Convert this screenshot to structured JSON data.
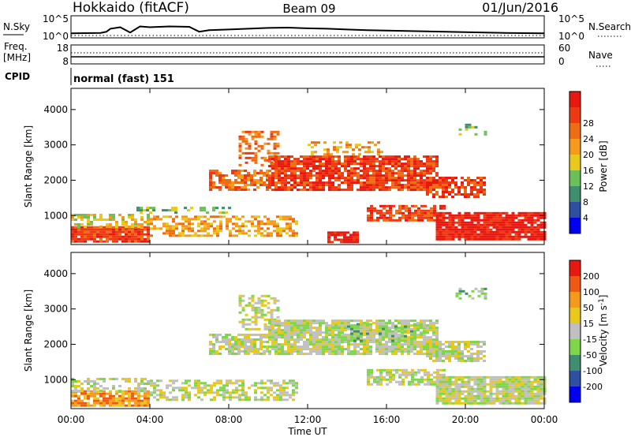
{
  "header": {
    "station": "Hokkaido (fitACF)",
    "beam": "Beam 09",
    "date": "01/Jun/2016"
  },
  "noise_panel": {
    "left_label": "N.Sky",
    "right_label": "N.Search",
    "left_ticks": [
      "10^5",
      "10^0"
    ],
    "right_ticks": [
      "10^5",
      "10^0"
    ]
  },
  "freq_panel": {
    "left_label_1": "Freq.",
    "left_label_2": "[MHz]",
    "right_label": "Nave",
    "left_ticks": [
      "18",
      "8"
    ],
    "right_ticks": [
      "60",
      "0"
    ]
  },
  "cpid_panel": {
    "label": "CPID",
    "value": "normal (fast) 151"
  },
  "x_axis": {
    "title": "Time UT",
    "ticks": [
      "00:00",
      "04:00",
      "08:00",
      "12:00",
      "16:00",
      "20:00",
      "00:00"
    ]
  },
  "colors": {
    "power_scale": [
      "#0000ee",
      "#2f4fa0",
      "#3f8f6f",
      "#6cc05a",
      "#e8c81a",
      "#f59a1c",
      "#f06c12",
      "#ee3a12",
      "#e8170f"
    ],
    "velocity_scale": [
      "#e8170f",
      "#ee5a14",
      "#f59a1c",
      "#e8c81a",
      "#c0c0c0",
      "#7ed64a",
      "#3f8f6f",
      "#2f4fa0",
      "#0000ee"
    ]
  },
  "chart_data": [
    {
      "type": "line",
      "panel": "noise",
      "ylabel": "N.Sky",
      "y2label": "N.Search",
      "yscale": "log",
      "ylim": [
        1,
        100000
      ],
      "xlim_hours": [
        0,
        24
      ],
      "series": [
        {
          "values": [
            [
              0.0,
              0.8
            ],
            [
              1.5,
              0.9
            ],
            [
              1.8,
              1.2
            ],
            [
              2.0,
              2.0
            ],
            [
              2.5,
              2.4
            ],
            [
              3.0,
              1.0
            ],
            [
              3.5,
              2.6
            ],
            [
              4.0,
              2.4
            ],
            [
              5.0,
              2.6
            ],
            [
              6.0,
              2.5
            ],
            [
              6.5,
              1.2
            ],
            [
              7.0,
              1.6
            ],
            [
              8.0,
              1.8
            ],
            [
              9.0,
              2.0
            ],
            [
              10.0,
              2.2
            ],
            [
              11.0,
              2.3
            ],
            [
              12.0,
              2.1
            ],
            [
              13.0,
              2.0
            ],
            [
              14.0,
              1.8
            ],
            [
              15.0,
              1.6
            ],
            [
              16.0,
              1.5
            ],
            [
              17.0,
              1.4
            ],
            [
              18.0,
              1.3
            ],
            [
              19.0,
              1.2
            ],
            [
              20.0,
              1.1
            ],
            [
              21.0,
              1.0
            ],
            [
              22.0,
              0.9
            ],
            [
              24.0,
              0.8
            ]
          ]
        }
      ]
    },
    {
      "type": "line",
      "panel": "frequency",
      "ylabel": "Freq. [MHz]",
      "y2label": "Nave",
      "ylim": [
        8,
        18
      ],
      "y2lim": [
        0,
        60
      ],
      "series": [
        {
          "values": [
            [
              0,
              10.5
            ],
            [
              24,
              10.5
            ]
          ]
        },
        {
          "values": [
            [
              0,
              13.0
            ],
            [
              24,
              13.0
            ]
          ]
        }
      ]
    },
    {
      "type": "heatmap",
      "title": "",
      "xlabel": "Time UT",
      "ylabel": "Slant Range [km]",
      "colorbar_label": "Power [dB]",
      "colorbar_ticks": [
        "4",
        "8",
        "12",
        "16",
        "20",
        "24",
        "28"
      ],
      "xlim_hours": [
        0,
        24
      ],
      "ylim": [
        180,
        4600
      ],
      "yticks": [
        1000,
        2000,
        3000,
        4000
      ],
      "regions": [
        {
          "t": [
            0.0,
            4.0
          ],
          "r": [
            250,
            700
          ],
          "level": 7,
          "density": 0.95
        },
        {
          "t": [
            0.0,
            4.0
          ],
          "r": [
            700,
            1050
          ],
          "level": 4,
          "density": 0.45
        },
        {
          "t": [
            4.0,
            11.5
          ],
          "r": [
            450,
            1000
          ],
          "level": 5,
          "density": 0.55
        },
        {
          "t": [
            3.0,
            8.0
          ],
          "r": [
            1100,
            1250
          ],
          "level": 3,
          "density": 0.3
        },
        {
          "t": [
            7.0,
            10.0
          ],
          "r": [
            1700,
            2300
          ],
          "level": 6,
          "density": 0.7
        },
        {
          "t": [
            8.5,
            10.5
          ],
          "r": [
            2400,
            3400
          ],
          "level": 6,
          "density": 0.5
        },
        {
          "t": [
            10.0,
            18.5
          ],
          "r": [
            1700,
            2700
          ],
          "level": 7,
          "density": 0.85
        },
        {
          "t": [
            12.0,
            16.0
          ],
          "r": [
            2700,
            3100
          ],
          "level": 5,
          "density": 0.35
        },
        {
          "t": [
            15.0,
            19.0
          ],
          "r": [
            850,
            1300
          ],
          "level": 7,
          "density": 0.7
        },
        {
          "t": [
            18.5,
            24.0
          ],
          "r": [
            350,
            1100
          ],
          "level": 8,
          "density": 0.9
        },
        {
          "t": [
            18.0,
            21.0
          ],
          "r": [
            1500,
            2100
          ],
          "level": 7,
          "density": 0.7
        },
        {
          "t": [
            13.0,
            14.5
          ],
          "r": [
            250,
            550
          ],
          "level": 8,
          "density": 0.8
        },
        {
          "t": [
            19.5,
            21.0
          ],
          "r": [
            3300,
            3600
          ],
          "level": 3,
          "density": 0.3
        }
      ]
    },
    {
      "type": "heatmap",
      "title": "",
      "xlabel": "Time UT",
      "ylabel": "Slant Range [km]",
      "colorbar_label": "Velocity [m s^-1]",
      "colorbar_ticks": [
        "200",
        "100",
        "50",
        "15",
        "-15",
        "-50",
        "-100",
        "-200"
      ],
      "xlim_hours": [
        0,
        24
      ],
      "ylim": [
        180,
        4600
      ],
      "yticks": [
        1000,
        2000,
        3000,
        4000
      ],
      "regions": [
        {
          "t": [
            0.0,
            4.0
          ],
          "r": [
            250,
            700
          ],
          "level": 2,
          "density": 0.85
        },
        {
          "t": [
            0.0,
            4.0
          ],
          "r": [
            700,
            1050
          ],
          "level": 4,
          "density": 0.45
        },
        {
          "t": [
            4.0,
            11.5
          ],
          "r": [
            450,
            1000
          ],
          "level": 4,
          "density": 0.55
        },
        {
          "t": [
            7.0,
            10.0
          ],
          "r": [
            1700,
            2300
          ],
          "level": 4,
          "density": 0.7
        },
        {
          "t": [
            8.5,
            10.5
          ],
          "r": [
            2400,
            3400
          ],
          "level": 4,
          "density": 0.5
        },
        {
          "t": [
            10.0,
            18.5
          ],
          "r": [
            1700,
            2700
          ],
          "level": 4,
          "density": 0.85
        },
        {
          "t": [
            14.0,
            18.0
          ],
          "r": [
            2100,
            2600
          ],
          "level": 5,
          "density": 0.35
        },
        {
          "t": [
            15.0,
            19.0
          ],
          "r": [
            850,
            1300
          ],
          "level": 4,
          "density": 0.7
        },
        {
          "t": [
            18.5,
            24.0
          ],
          "r": [
            350,
            1100
          ],
          "level": 4,
          "density": 0.9
        },
        {
          "t": [
            18.0,
            21.0
          ],
          "r": [
            1500,
            2100
          ],
          "level": 4,
          "density": 0.7
        },
        {
          "t": [
            19.5,
            21.0
          ],
          "r": [
            3300,
            3600
          ],
          "level": 5,
          "density": 0.3
        }
      ]
    }
  ]
}
